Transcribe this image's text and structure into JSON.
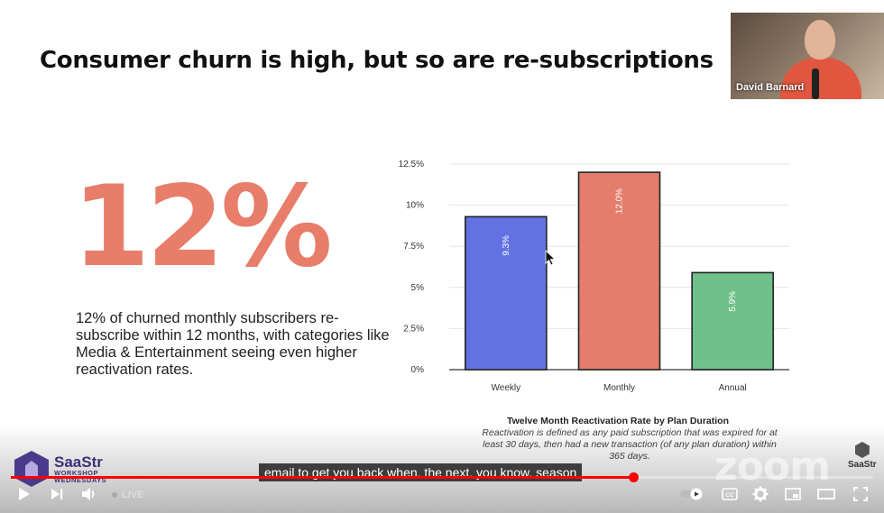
{
  "slide": {
    "title": "Consumer churn is high, but so are re-subscriptions",
    "big_stat": "12%",
    "description": "12% of churned monthly subscribers re-subscribe within 12 months, with categories like Media & Entertainment seeing even higher reactivation rates."
  },
  "chart_data": {
    "type": "bar",
    "title": "Twelve Month Reactivation Rate by Plan Duration",
    "note": "Reactivation is defined as any paid subscription that was expired for at least 30 days, then had a new transaction (of any plan duration) within 365 days.",
    "categories": [
      "Weekly",
      "Monthly",
      "Annual"
    ],
    "values": [
      9.3,
      12.0,
      5.9
    ],
    "value_labels": [
      "9.3%",
      "12.0%",
      "5.9%"
    ],
    "colors": [
      "#6272e2",
      "#e47d6b",
      "#70c08b"
    ],
    "yticks": [
      "0%",
      "2.5%",
      "5%",
      "7.5%",
      "10%",
      "12.5%"
    ],
    "ylim": [
      0,
      12.5
    ],
    "grid": true,
    "xlabel": "",
    "ylabel": ""
  },
  "webcam": {
    "name": "David Barnard"
  },
  "branding": {
    "logo_main": "SaaStr",
    "logo_sub_1": "WORKSHOP",
    "logo_sub_2": "WEDNESDAYS",
    "zoom_text": "zoom",
    "corner_logo": "SaaStr"
  },
  "player": {
    "caption": "email to get you back when, the next, you know, season",
    "live_label": "LIVE",
    "progress": 0.72
  },
  "icons": {
    "play": "play-icon",
    "next": "next-icon",
    "volume": "volume-icon",
    "autoplay": "autoplay-toggle-icon",
    "cc": "captions-icon",
    "settings": "gear-icon",
    "miniplayer": "miniplayer-icon",
    "theater": "theater-icon",
    "fullscreen": "fullscreen-icon"
  }
}
